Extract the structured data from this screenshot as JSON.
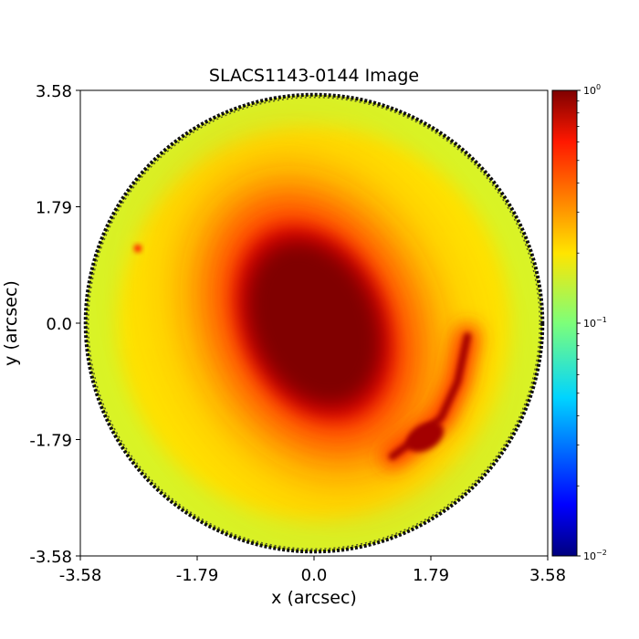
{
  "chart_data": {
    "type": "heatmap",
    "title": "SLACS1143-0144 Image",
    "xlabel": "x (arcsec)",
    "ylabel": "y (arcsec)",
    "xlim": [
      -3.58,
      3.58
    ],
    "ylim": [
      -3.58,
      3.58
    ],
    "x_ticks": [
      "-3.58",
      "-1.79",
      "0.0",
      "1.79",
      "3.58"
    ],
    "y_ticks": [
      "3.58",
      "1.79",
      "0.0",
      "-1.79",
      "-3.58"
    ],
    "mask_radius_arcsec": 3.5,
    "grid": false,
    "colormap": "jet",
    "colorbar": {
      "scale": "log",
      "range": [
        0.01,
        1.0
      ],
      "tick_labels": [
        {
          "base": "10",
          "exp": "0",
          "value": 1.0
        },
        {
          "base": "10",
          "exp": "−1",
          "value": 0.1
        },
        {
          "base": "10",
          "exp": "−2",
          "value": 0.01
        }
      ]
    },
    "features": [
      {
        "kind": "lens-galaxy",
        "center": [
          0.0,
          0.0
        ],
        "peak_value": 1.0,
        "axis_ratio": 0.72,
        "rotation_deg": -25
      },
      {
        "kind": "lensed-arc",
        "trace": [
          [
            2.35,
            -0.2
          ],
          [
            2.2,
            -0.9
          ],
          [
            1.95,
            -1.45
          ],
          [
            1.6,
            -1.75
          ],
          [
            1.2,
            -2.05
          ]
        ],
        "peak_value": 0.85
      },
      {
        "kind": "bright-knot",
        "position": [
          -2.7,
          1.15
        ],
        "value": 0.55
      }
    ],
    "background_value": 0.2
  }
}
